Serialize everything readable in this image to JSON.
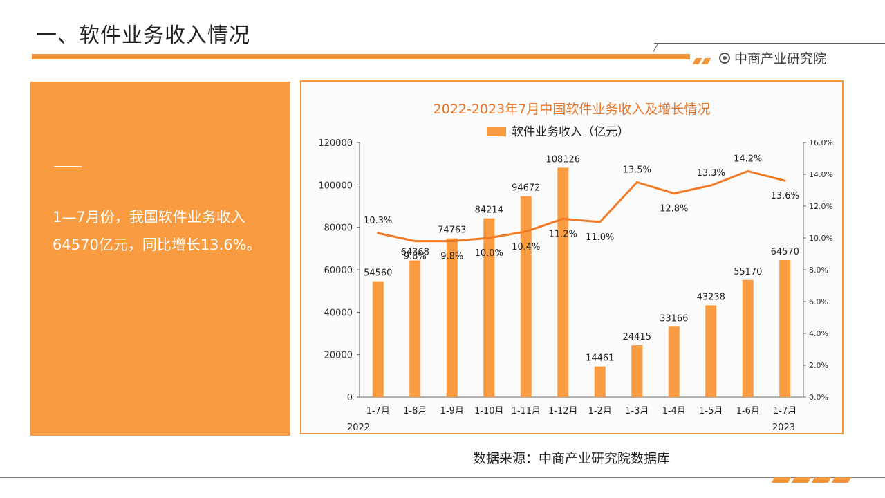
{
  "header": {
    "title": "一、软件业务收入情况",
    "brand": "中商产业研究院",
    "brand_icon": "target-icon",
    "accent_color": "#f39439"
  },
  "side_panel": {
    "text": "1—7月份，我国软件业务收入64570亿元，同比增长13.6%。",
    "background_color": "#f99b40"
  },
  "footer": {
    "source": "数据来源：中商产业研究院数据库"
  },
  "chart_data": {
    "type": "bar",
    "title": "2022-2023年7月中国软件业务收入及增长情况",
    "categories": [
      "1-7月",
      "1-8月",
      "1-9月",
      "1-10月",
      "1-11月",
      "1-12月",
      "1-2月",
      "1-3月",
      "1-4月",
      "1-5月",
      "1-6月",
      "1-7月"
    ],
    "year_labels": {
      "start": "2022",
      "end": "2023"
    },
    "series": [
      {
        "name": "软件业务收入（亿元）",
        "type": "bar",
        "axis": "left",
        "color": "#f99b40",
        "values": [
          54560,
          64368,
          74763,
          84214,
          94672,
          108126,
          14461,
          24415,
          33166,
          43238,
          55170,
          64570
        ],
        "labels": [
          "54560",
          "64368",
          "74763",
          "84214",
          "94672",
          "108126",
          "14461",
          "24415",
          "33166",
          "43238",
          "55170",
          "64570"
        ]
      },
      {
        "type": "line",
        "axis": "right",
        "color": "#f07a26",
        "values": [
          10.3,
          9.8,
          9.8,
          10.0,
          10.4,
          11.2,
          11.0,
          13.5,
          12.8,
          13.3,
          14.2,
          13.6
        ],
        "labels": [
          "10.3%",
          "9.8%",
          "9.8%",
          "10.0%",
          "10.4%",
          "11.2%",
          "11.0%",
          "13.5%",
          "12.8%",
          "13.3%",
          "14.2%",
          "13.6%"
        ]
      }
    ],
    "y_left": {
      "min": 0,
      "max": 120000,
      "ticks": [
        "0",
        "20000",
        "40000",
        "60000",
        "80000",
        "100000",
        "120000"
      ]
    },
    "y_right": {
      "min": 0,
      "max": 16,
      "ticks": [
        "0.0%",
        "2.0%",
        "4.0%",
        "6.0%",
        "8.0%",
        "10.0%",
        "12.0%",
        "14.0%",
        "16.0%"
      ]
    },
    "legend_position": "top-center",
    "grid": false
  }
}
